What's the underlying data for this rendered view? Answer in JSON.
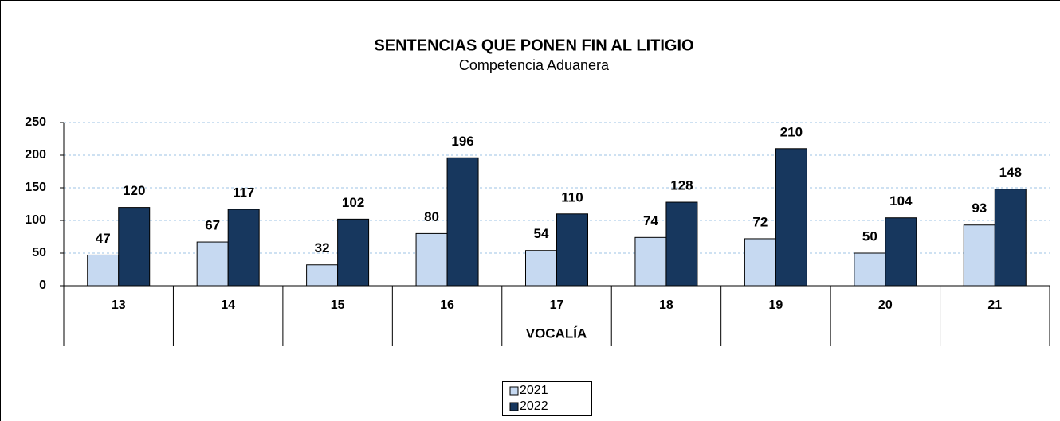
{
  "chart_data": {
    "type": "bar",
    "title": "SENTENCIAS QUE PONEN FIN AL LITIGIO",
    "subtitle": "Competencia Aduanera",
    "x_label": "VOCALÍA",
    "categories": [
      "13",
      "14",
      "15",
      "16",
      "17",
      "18",
      "19",
      "20",
      "21"
    ],
    "series": [
      {
        "name": "2021",
        "color": "#c6d9f1",
        "values": [
          47,
          67,
          32,
          80,
          54,
          74,
          72,
          50,
          93
        ]
      },
      {
        "name": "2022",
        "color": "#17375e",
        "values": [
          120,
          117,
          102,
          196,
          110,
          128,
          210,
          104,
          148
        ]
      }
    ],
    "ylim": [
      0,
      250
    ],
    "yticks": [
      0,
      50,
      100,
      150,
      200,
      250
    ],
    "grid": true,
    "legend": "bottom"
  }
}
